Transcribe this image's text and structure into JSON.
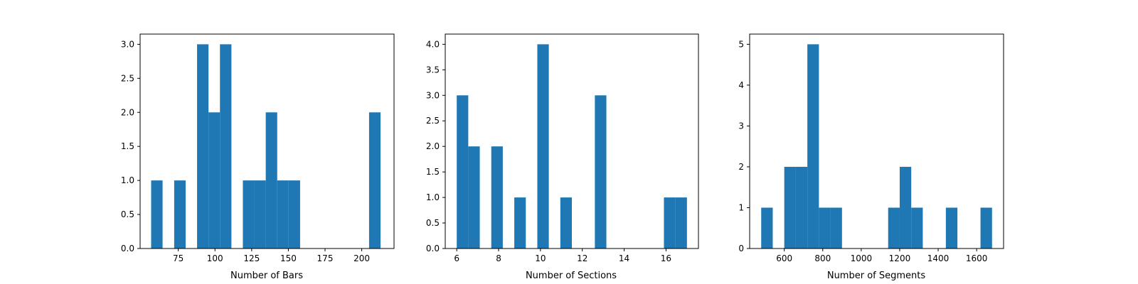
{
  "chart_data": [
    {
      "type": "bar",
      "xlabel": "Number of Bars",
      "ylabel": "",
      "title": "",
      "xlim": [
        49,
        222
      ],
      "ylim": [
        0,
        3.15
      ],
      "xticks": [
        75,
        100,
        125,
        150,
        175,
        200
      ],
      "yticks": [
        0.0,
        0.5,
        1.0,
        1.5,
        2.0,
        2.5,
        3.0
      ],
      "ytick_decimals": 1,
      "bin_width": 7.8,
      "bars": [
        {
          "x": 56.5,
          "value": 1
        },
        {
          "x": 72.2,
          "value": 1
        },
        {
          "x": 87.8,
          "value": 3
        },
        {
          "x": 95.6,
          "value": 2
        },
        {
          "x": 103.4,
          "value": 3
        },
        {
          "x": 119.0,
          "value": 1
        },
        {
          "x": 126.8,
          "value": 1
        },
        {
          "x": 134.6,
          "value": 2
        },
        {
          "x": 142.4,
          "value": 1
        },
        {
          "x": 150.2,
          "value": 1
        },
        {
          "x": 205.0,
          "value": 2
        }
      ],
      "color": "#1f77b4"
    },
    {
      "type": "bar",
      "xlabel": "Number of Sections",
      "ylabel": "",
      "title": "",
      "xlim": [
        5.45,
        17.55
      ],
      "ylim": [
        0,
        4.2
      ],
      "xticks": [
        6,
        8,
        10,
        12,
        14,
        16
      ],
      "yticks": [
        0.0,
        0.5,
        1.0,
        1.5,
        2.0,
        2.5,
        3.0,
        3.5,
        4.0
      ],
      "ytick_decimals": 1,
      "bin_width": 0.55,
      "bars": [
        {
          "x": 6.0,
          "value": 3
        },
        {
          "x": 6.55,
          "value": 2
        },
        {
          "x": 7.65,
          "value": 2
        },
        {
          "x": 8.75,
          "value": 1
        },
        {
          "x": 9.85,
          "value": 4
        },
        {
          "x": 10.95,
          "value": 1
        },
        {
          "x": 12.6,
          "value": 3
        },
        {
          "x": 15.9,
          "value": 1
        },
        {
          "x": 16.45,
          "value": 1
        }
      ],
      "color": "#1f77b4"
    },
    {
      "type": "bar",
      "xlabel": "Number of Segments",
      "ylabel": "",
      "title": "",
      "xlim": [
        420,
        1740
      ],
      "ylim": [
        0,
        5.25
      ],
      "xticks": [
        600,
        800,
        1000,
        1200,
        1400,
        1600
      ],
      "yticks": [
        0,
        1,
        2,
        3,
        4,
        5
      ],
      "ytick_decimals": 0,
      "bin_width": 60,
      "bars": [
        {
          "x": 480,
          "value": 1
        },
        {
          "x": 600,
          "value": 2
        },
        {
          "x": 660,
          "value": 2
        },
        {
          "x": 720,
          "value": 5
        },
        {
          "x": 780,
          "value": 1
        },
        {
          "x": 840,
          "value": 1
        },
        {
          "x": 1140,
          "value": 1
        },
        {
          "x": 1200,
          "value": 2
        },
        {
          "x": 1260,
          "value": 1
        },
        {
          "x": 1440,
          "value": 1
        },
        {
          "x": 1620,
          "value": 1
        }
      ],
      "color": "#1f77b4"
    }
  ]
}
